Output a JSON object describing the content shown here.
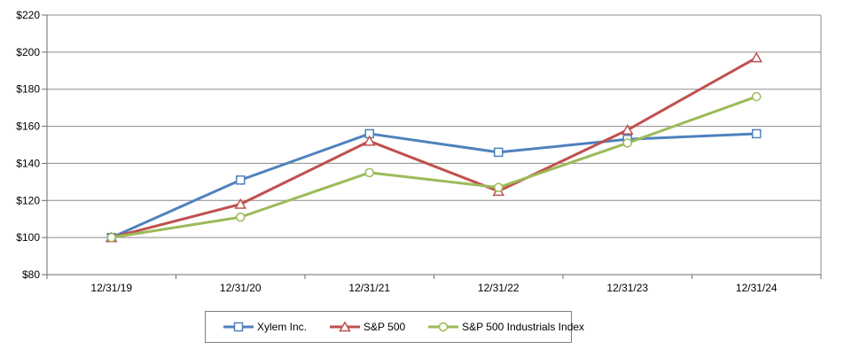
{
  "chart_data": {
    "type": "line",
    "title": "",
    "categories": [
      "12/31/19",
      "12/31/20",
      "12/31/21",
      "12/31/22",
      "12/31/23",
      "12/31/24"
    ],
    "series": [
      {
        "name": "Xylem Inc.",
        "values": [
          100,
          131,
          156,
          146,
          153,
          156
        ],
        "color": "#4F81BD",
        "marker": "square",
        "marker_fill": "#FFFFFF"
      },
      {
        "name": "S&P 500",
        "values": [
          100,
          118,
          152,
          125,
          158,
          197
        ],
        "color": "#C0504D",
        "marker": "triangle",
        "marker_fill": "#FFFFFF"
      },
      {
        "name": "S&P 500 Industrials Index",
        "values": [
          100,
          111,
          135,
          127,
          151,
          176
        ],
        "color": "#9BBB59",
        "marker": "circle",
        "marker_fill": "#FFFFFF"
      }
    ],
    "y_axis": {
      "min": 80,
      "max": 220,
      "step": 20,
      "tick_labels": [
        "$80",
        "$100",
        "$120",
        "$140",
        "$160",
        "$180",
        "$200",
        "$220"
      ]
    },
    "x_tick_labels": [
      "12/31/19",
      "12/31/20",
      "12/31/21",
      "12/31/22",
      "12/31/23",
      "12/31/24"
    ],
    "grid": true,
    "legend_position": "bottom"
  },
  "colors": {
    "gridline": "#8C8C8C",
    "axis": "#6E6E6E",
    "plot_border": "#8C8C8C",
    "legend_border": "#7F7F7F",
    "background": "#FFFFFF",
    "text": "#000000"
  }
}
